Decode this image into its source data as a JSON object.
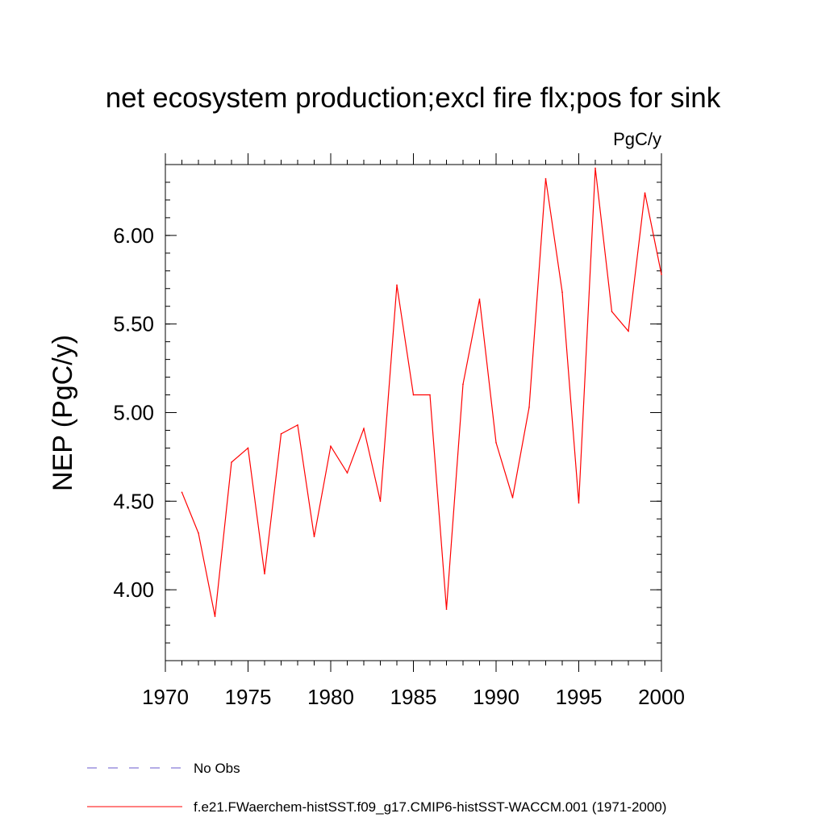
{
  "chart_data": {
    "type": "line",
    "title": "net ecosystem production;excl fire flx;pos for sink",
    "units_label": "PgC/y",
    "ylabel": "NEP  (PgC/y)",
    "xlabel": "",
    "xlim": [
      1970,
      2000
    ],
    "ylim": [
      3.6,
      6.4
    ],
    "x_ticks": [
      1970,
      1975,
      1980,
      1985,
      1990,
      1995,
      2000
    ],
    "x_tick_labels": [
      "1970",
      "1975",
      "1980",
      "1985",
      "1990",
      "1995",
      "2000"
    ],
    "y_ticks": [
      4.0,
      4.5,
      5.0,
      5.5,
      6.0
    ],
    "y_tick_labels": [
      "4.00",
      "4.50",
      "5.00",
      "5.50",
      "6.00"
    ],
    "grid": false,
    "legend_position": "bottom",
    "series": [
      {
        "name": "f.e21.FWaerchem-histSST.f09_g17.CMIP6-histSST-WACCM.001 (1971-2000)",
        "color": "#ff0000",
        "style": "solid",
        "x": [
          1971,
          1972,
          1973,
          1974,
          1975,
          1976,
          1977,
          1978,
          1979,
          1980,
          1981,
          1982,
          1983,
          1984,
          1985,
          1986,
          1987,
          1988,
          1989,
          1990,
          1991,
          1992,
          1993,
          1994,
          1995,
          1996,
          1997,
          1998,
          1999,
          2000
        ],
        "values": [
          4.55,
          4.32,
          3.85,
          4.72,
          4.8,
          4.09,
          4.88,
          4.93,
          4.3,
          4.81,
          4.66,
          4.91,
          4.5,
          5.72,
          5.1,
          5.1,
          3.89,
          5.16,
          5.64,
          4.83,
          4.52,
          5.03,
          6.32,
          5.68,
          4.49,
          6.38,
          5.57,
          5.46,
          6.24,
          5.78
        ]
      }
    ],
    "legend": [
      {
        "label": "No Obs",
        "color": "#6a5acd",
        "style": "dashed"
      },
      {
        "label": "f.e21.FWaerchem-histSST.f09_g17.CMIP6-histSST-WACCM.001 (1971-2000)",
        "color": "#ff0000",
        "style": "solid"
      }
    ]
  }
}
